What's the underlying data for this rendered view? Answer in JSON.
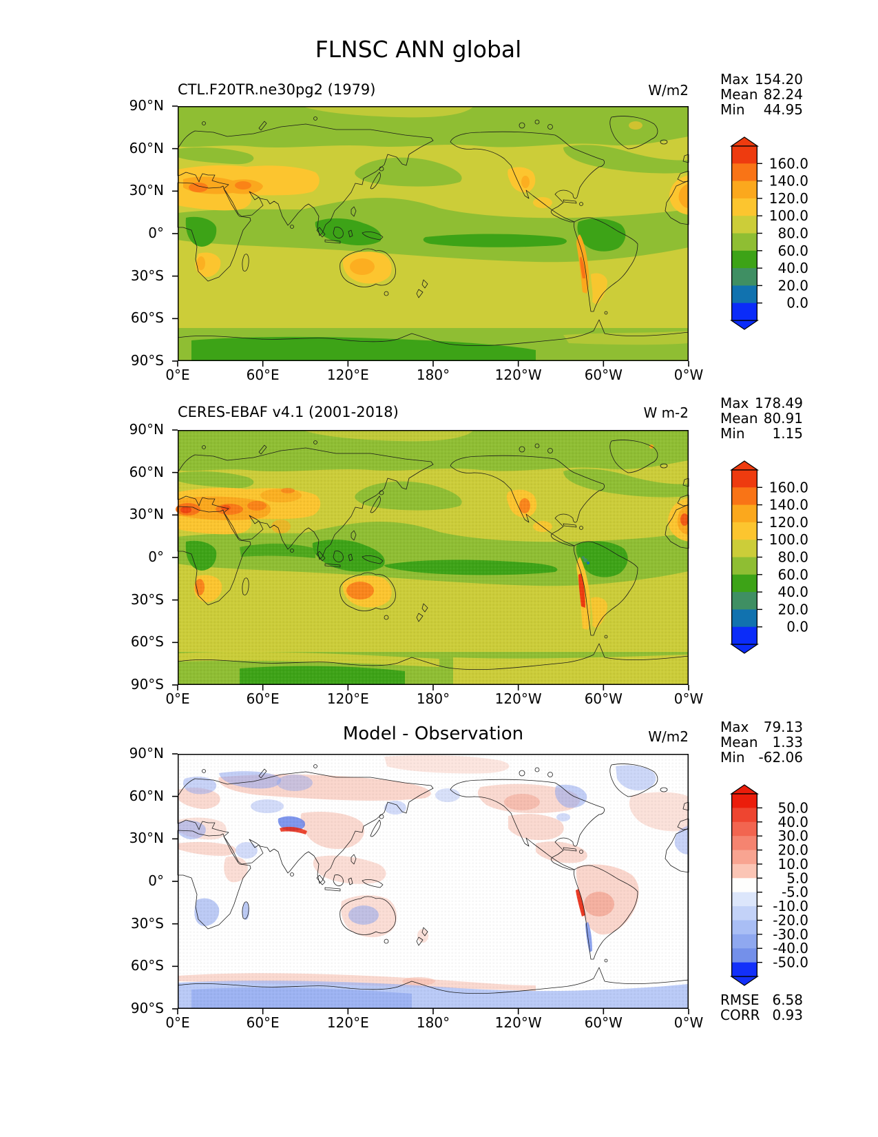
{
  "figure_title": "FLNSC ANN global",
  "panels": [
    {
      "title": "CTL.F20TR.ne30pg2 (1979)",
      "units": "W/m2",
      "stats": [
        [
          "Max",
          "154.20"
        ],
        [
          "Mean",
          "82.24"
        ],
        [
          "Min",
          "44.95"
        ]
      ]
    },
    {
      "title": "CERES-EBAF v4.1 (2001-2018)",
      "units": "W m-2",
      "stats": [
        [
          "Max",
          "178.49"
        ],
        [
          "Mean",
          "80.91"
        ],
        [
          "Min",
          "1.15"
        ]
      ]
    },
    {
      "title": "Model - Observation",
      "units": "W/m2",
      "stats": [
        [
          "Max",
          "79.13"
        ],
        [
          "Mean",
          "1.33"
        ],
        [
          "Min",
          "-62.06"
        ]
      ],
      "metrics": [
        [
          "RMSE",
          "6.58"
        ],
        [
          "CORR",
          "0.93"
        ]
      ]
    }
  ],
  "axes": {
    "lat_labels": [
      "90°N",
      "60°N",
      "30°N",
      "0°",
      "30°S",
      "60°S",
      "90°S"
    ],
    "lon_labels": [
      "0°E",
      "60°E",
      "120°E",
      "180°",
      "120°W",
      "60°W",
      "0°W"
    ]
  },
  "colorbars": {
    "flux": {
      "tick_labels": [
        "160.0",
        "140.0",
        "120.0",
        "100.0",
        "80.0",
        "60.0",
        "40.0",
        "20.0",
        "0.0"
      ],
      "colors": [
        "#ee3b0f",
        "#f97416",
        "#fba81d",
        "#fcc52f",
        "#cccd39",
        "#8fbe33",
        "#3da317",
        "#3f8f63",
        "#1172af",
        "#0b2cf9"
      ]
    },
    "diff": {
      "tick_labels": [
        "50.0",
        "40.0",
        "30.0",
        "20.0",
        "10.0",
        "5.0",
        "-5.0",
        "-10.0",
        "-20.0",
        "-30.0",
        "-40.0",
        "-50.0"
      ],
      "colors": [
        "#eb1d0b",
        "#ee4530",
        "#f26550",
        "#f58470",
        "#f8a491",
        "#fbc5b5",
        "#fefefd",
        "#dce6fb",
        "#c3d2f8",
        "#a9bef5",
        "#8fa8f0",
        "#7490ea",
        "#1330fa"
      ]
    }
  },
  "chart_data": [
    {
      "type": "heatmap",
      "panel": "top",
      "title": "CTL.F20TR.ne30pg2 (1979)",
      "units": "W/m2",
      "projection": "global lat-lon, Pacific-centered (0°E to 0°W)",
      "levels": [
        0,
        20,
        40,
        60,
        80,
        100,
        120,
        140,
        160
      ],
      "colorbar_extend": "both",
      "stats": {
        "max": 154.2,
        "mean": 82.24,
        "min": 44.95
      }
    },
    {
      "type": "heatmap",
      "panel": "middle",
      "title": "CERES-EBAF v4.1 (2001-2018)",
      "units": "W m-2",
      "projection": "global lat-lon, Pacific-centered (0°E to 0°W)",
      "levels": [
        0,
        20,
        40,
        60,
        80,
        100,
        120,
        140,
        160
      ],
      "colorbar_extend": "both",
      "stats": {
        "max": 178.49,
        "mean": 80.91,
        "min": 1.15
      }
    },
    {
      "type": "heatmap",
      "panel": "bottom",
      "title": "Model - Observation",
      "units": "W/m2",
      "projection": "global lat-lon, Pacific-centered (0°E to 0°W)",
      "levels": [
        -50,
        -40,
        -30,
        -20,
        -10,
        -5,
        5,
        10,
        20,
        30,
        40,
        50
      ],
      "colorbar_extend": "both",
      "stats": {
        "max": 79.13,
        "mean": 1.33,
        "min": -62.06,
        "rmse": 6.58,
        "corr": 0.93
      }
    }
  ]
}
